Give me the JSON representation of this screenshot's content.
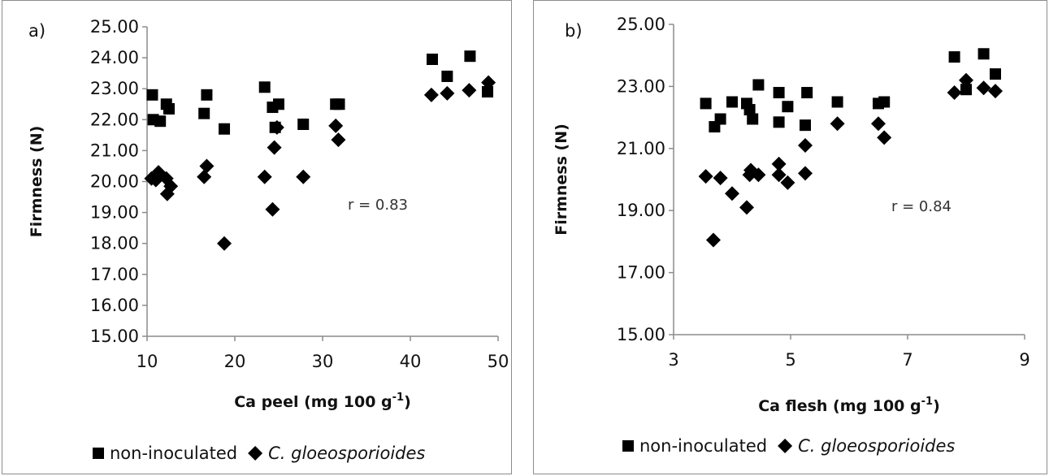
{
  "chart_data": [
    {
      "type": "scatter",
      "panel_label": "a)",
      "xlabel": "Ca peel (mg 100 g",
      "xlabel_sup": "-1",
      "xlabel_end": ")",
      "ylabel": "Firmness (N)",
      "xlim": [
        10,
        50
      ],
      "ylim": [
        15,
        25
      ],
      "xticks": [
        "10",
        "20",
        "30",
        "40",
        "50"
      ],
      "yticks": [
        "15.00",
        "16.00",
        "17.00",
        "18.00",
        "19.00",
        "20.00",
        "21.00",
        "22.00",
        "23.00",
        "24.00",
        "25.00"
      ],
      "annotation": "r = 0.83",
      "legend_position": "bottom",
      "series": [
        {
          "name": "non-inoculated",
          "marker": "square",
          "color": "#000000",
          "points": [
            [
              10.6,
              22.8
            ],
            [
              10.7,
              22.0
            ],
            [
              11.5,
              21.95
            ],
            [
              12.2,
              22.5
            ],
            [
              12.5,
              22.35
            ],
            [
              16.5,
              22.2
            ],
            [
              16.8,
              22.8
            ],
            [
              18.8,
              21.7
            ],
            [
              23.4,
              23.05
            ],
            [
              24.3,
              22.4
            ],
            [
              24.6,
              21.75
            ],
            [
              25.0,
              22.5
            ],
            [
              27.8,
              21.85
            ],
            [
              31.5,
              22.5
            ],
            [
              31.9,
              22.5
            ],
            [
              42.5,
              23.95
            ],
            [
              44.2,
              23.4
            ],
            [
              46.8,
              24.05
            ],
            [
              48.8,
              22.9
            ]
          ]
        },
        {
          "name": "C. gloeosporioides",
          "marker": "diamond",
          "color": "#000000",
          "points": [
            [
              10.5,
              20.1
            ],
            [
              11.0,
              20.05
            ],
            [
              11.3,
              20.3
            ],
            [
              12.2,
              20.1
            ],
            [
              12.3,
              19.6
            ],
            [
              12.7,
              19.85
            ],
            [
              16.5,
              20.15
            ],
            [
              16.8,
              20.5
            ],
            [
              18.8,
              18.0
            ],
            [
              23.4,
              20.15
            ],
            [
              24.3,
              19.1
            ],
            [
              24.5,
              21.1
            ],
            [
              24.8,
              21.75
            ],
            [
              27.8,
              20.15
            ],
            [
              31.5,
              21.8
            ],
            [
              31.8,
              21.35
            ],
            [
              42.4,
              22.8
            ],
            [
              44.2,
              22.85
            ],
            [
              46.7,
              22.95
            ],
            [
              48.9,
              23.2
            ]
          ]
        }
      ]
    },
    {
      "type": "scatter",
      "panel_label": "b)",
      "xlabel": "Ca flesh (mg 100 g",
      "xlabel_sup": "-1",
      "xlabel_end": ")",
      "ylabel": "Firmness (N)",
      "xlim": [
        3,
        9
      ],
      "ylim": [
        15,
        25
      ],
      "xticks": [
        "3",
        "5",
        "7",
        "9"
      ],
      "yticks": [
        "15.00",
        "17.00",
        "19.00",
        "21.00",
        "23.00",
        "25.00"
      ],
      "annotation": "r = 0.84",
      "legend_position": "bottom",
      "series": [
        {
          "name": "non-inoculated",
          "marker": "square",
          "color": "#000000",
          "points": [
            [
              3.55,
              22.45
            ],
            [
              3.7,
              21.7
            ],
            [
              3.8,
              21.95
            ],
            [
              4.0,
              22.5
            ],
            [
              4.25,
              22.45
            ],
            [
              4.3,
              22.25
            ],
            [
              4.35,
              21.95
            ],
            [
              4.45,
              23.05
            ],
            [
              4.8,
              22.8
            ],
            [
              4.8,
              21.85
            ],
            [
              4.95,
              22.35
            ],
            [
              5.25,
              21.75
            ],
            [
              5.28,
              22.8
            ],
            [
              5.8,
              22.5
            ],
            [
              6.5,
              22.45
            ],
            [
              6.6,
              22.5
            ],
            [
              7.8,
              23.95
            ],
            [
              8.0,
              22.9
            ],
            [
              8.3,
              24.05
            ],
            [
              8.5,
              23.4
            ]
          ]
        },
        {
          "name": "C. gloeosporioides",
          "marker": "diamond",
          "color": "#000000",
          "points": [
            [
              3.55,
              20.1
            ],
            [
              3.68,
              18.05
            ],
            [
              3.8,
              20.05
            ],
            [
              4.0,
              19.55
            ],
            [
              4.25,
              19.1
            ],
            [
              4.3,
              20.15
            ],
            [
              4.32,
              20.3
            ],
            [
              4.45,
              20.15
            ],
            [
              4.8,
              20.5
            ],
            [
              4.8,
              20.15
            ],
            [
              4.95,
              19.9
            ],
            [
              5.25,
              20.2
            ],
            [
              5.25,
              21.1
            ],
            [
              5.8,
              21.8
            ],
            [
              6.5,
              21.8
            ],
            [
              6.6,
              21.35
            ],
            [
              7.8,
              22.8
            ],
            [
              8.0,
              23.2
            ],
            [
              8.3,
              22.95
            ],
            [
              8.5,
              22.85
            ]
          ]
        }
      ]
    }
  ],
  "legend": {
    "series1_label": "non-inoculated",
    "series2_label": "C. gloeosporioides"
  }
}
